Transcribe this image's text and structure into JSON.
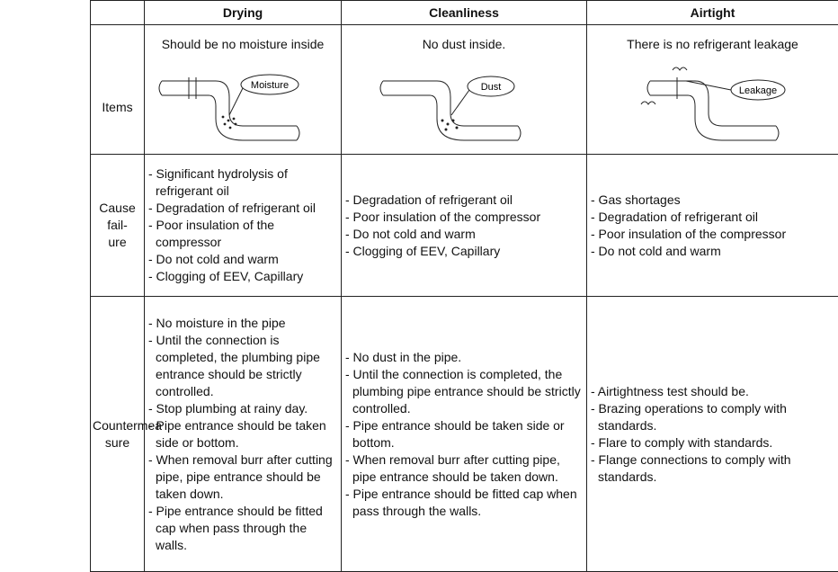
{
  "header": {
    "columns": [
      "Drying",
      "Cleanliness",
      "Airtight"
    ]
  },
  "items": {
    "label": "Items",
    "columns": [
      {
        "subtitle": "Should be no moisture inside",
        "image_label": "Moisture"
      },
      {
        "subtitle": "No dust inside.",
        "image_label": "Dust"
      },
      {
        "subtitle": "There is no refrigerant leakage",
        "image_label": "Leakage"
      }
    ]
  },
  "cause": {
    "label": [
      "Cause fail-",
      "ure"
    ],
    "columns": [
      [
        "- Significant hydrolysis of refrigerant oil",
        "- Degradation of refrigerant oil",
        "- Poor insulation of the compressor",
        "- Do not cold and warm",
        "- Clogging of EEV, Capillary"
      ],
      [
        "- Degradation of refrigerant oil",
        "- Poor insulation of the compressor",
        "- Do not cold and warm",
        "- Clogging of EEV, Capillary"
      ],
      [
        "- Gas shortages",
        "- Degradation of refrigerant oil",
        "- Poor insulation of the compressor",
        "- Do not cold and warm"
      ]
    ]
  },
  "countermeasure": {
    "label": [
      "Countermea",
      "sure"
    ],
    "columns": [
      [
        "- No moisture in the pipe",
        "- Until the connection is completed, the plumbing pipe entrance should be strictly controlled.",
        "- Stop plumbing at rainy day.",
        "- Pipe entrance should be taken side or bottom.",
        "- When removal burr after cutting pipe, pipe entrance should be taken down.",
        "- Pipe entrance should be fitted cap when pass through the walls."
      ],
      [
        "- No dust in the pipe.",
        "- Until the connection is completed, the plumbing pipe entrance should be strictly controlled.",
        "- Pipe entrance should be taken side or bottom.",
        "- When removal burr after cutting pipe, pipe entrance should be taken down.",
        "- Pipe entrance should be fitted cap when pass through the walls."
      ],
      [
        "- Airtightness test should be.",
        "- Brazing operations to comply with standards.",
        "- Flare to comply with standards.",
        "- Flange connections to comply with standards."
      ]
    ]
  }
}
